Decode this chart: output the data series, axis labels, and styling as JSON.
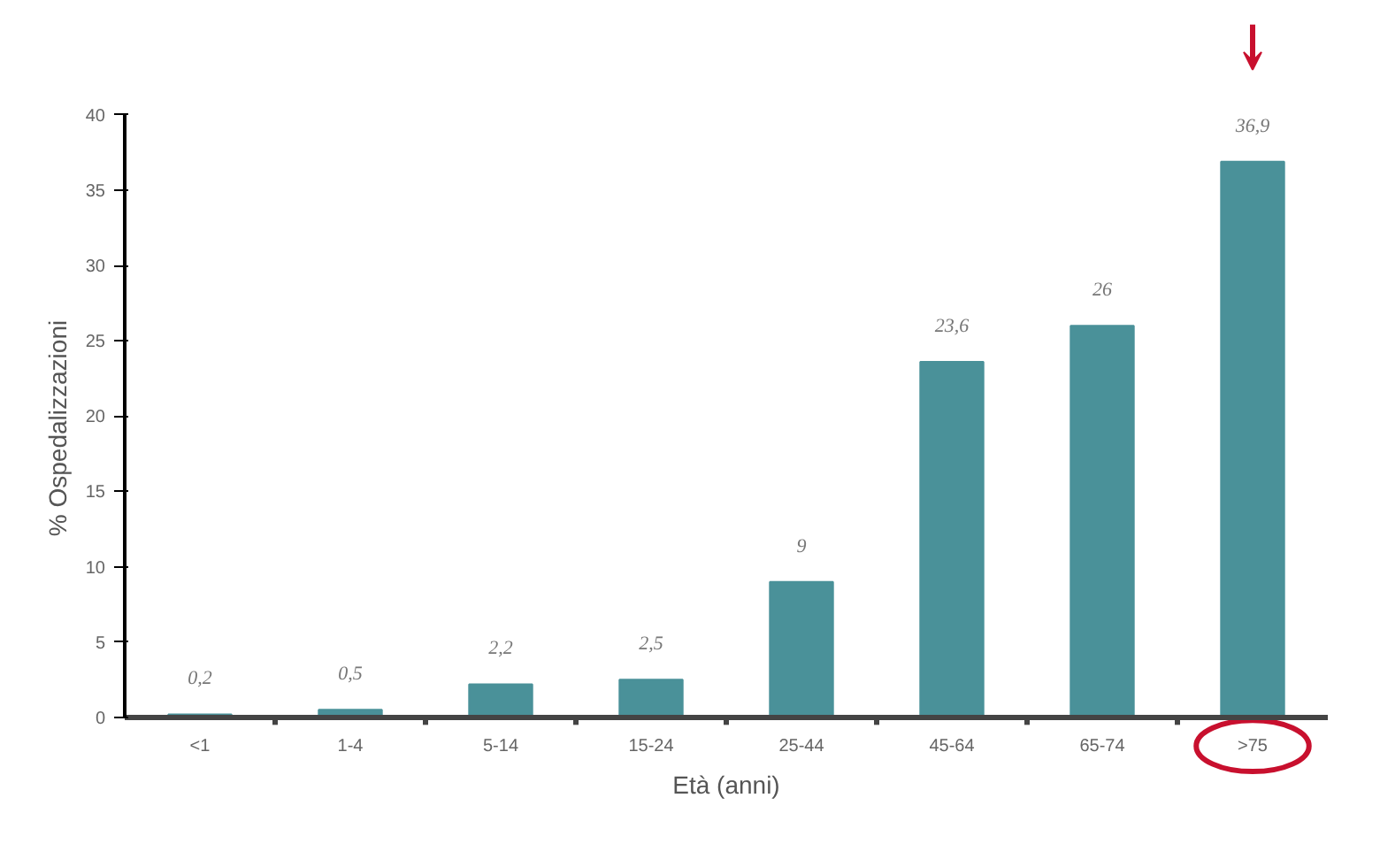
{
  "chart_data": {
    "type": "bar",
    "xlabel": "Età (anni)",
    "ylabel": "% Ospedalizzazioni",
    "categories": [
      "<1",
      "1-4",
      "5-14",
      "15-24",
      "25-44",
      "45-64",
      "65-74",
      ">75"
    ],
    "values": [
      0.2,
      0.5,
      2.2,
      2.5,
      9,
      23.6,
      26,
      36.9
    ],
    "value_labels": [
      "0,2",
      "0,5",
      "2,2",
      "2,5",
      "9",
      "23,6",
      "26",
      "36,9"
    ],
    "color": "#4a9199",
    "ylim": [
      0,
      40
    ],
    "yticks": [
      0,
      5,
      10,
      15,
      20,
      25,
      30,
      35,
      40
    ],
    "grid": false
  }
}
